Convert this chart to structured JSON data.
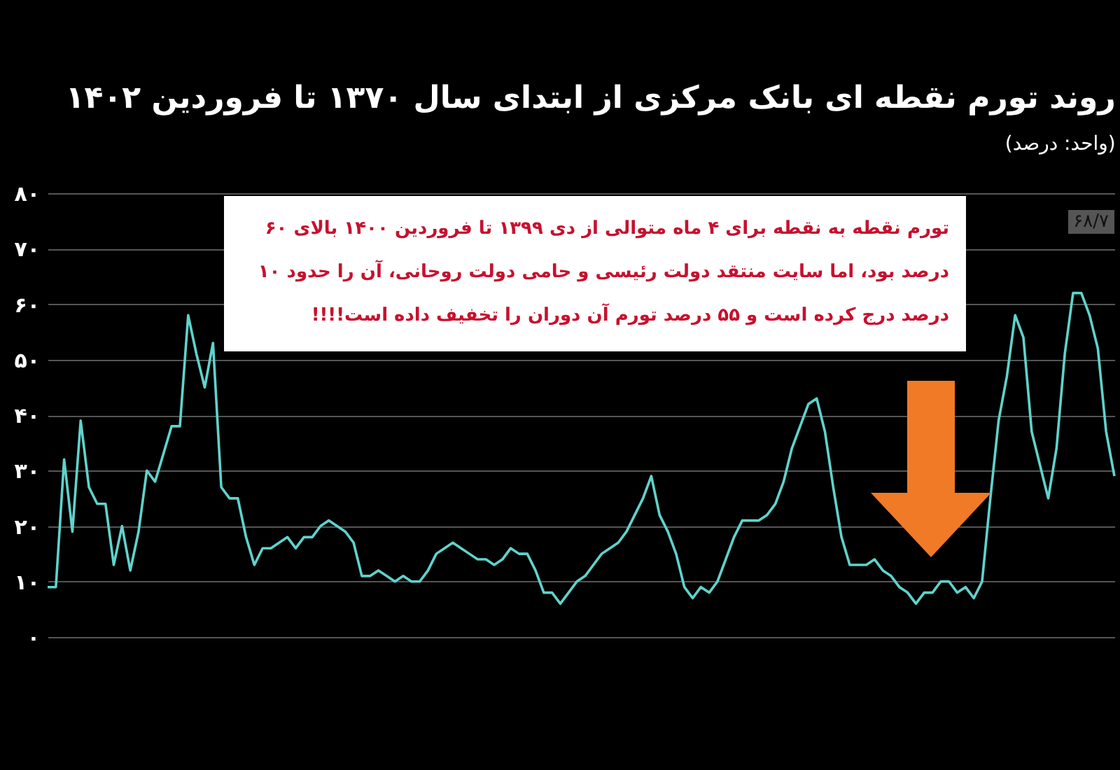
{
  "chart_data": {
    "type": "line",
    "title": "روند تورم نقطه ای بانک مرکزی از ابتدای سال ۱۳۷۰ تا فروردین ۱۴۰۲",
    "subtitle": "(واحد: درصد)",
    "annotations": [
      "تورم نقطه به نقطه برای ۴ ماه متوالی از دی ۱۳۹۹ تا فروردین ۱۴۰۰ بالای ۶۰ درصد بود، اما سایت منتقد دولت رئیسی و حامی دولت روحانی، آن را حدود ۱۰ درصد درج کرده است و ۵۵ درصد تورم آن دوران را تخفیف داده است!!!!",
      "۶۸/۷"
    ],
    "categories": [
      null,
      null,
      null,
      null,
      null,
      null,
      null,
      null,
      null,
      null,
      null,
      null,
      null,
      null,
      null,
      null,
      null,
      null,
      null,
      null,
      null,
      null,
      null,
      null,
      null,
      null,
      null,
      null,
      null,
      null,
      null,
      null,
      null,
      null,
      null,
      null,
      null,
      null,
      null,
      null,
      null,
      null,
      null,
      null,
      null,
      null,
      null,
      null,
      null,
      null,
      null,
      null,
      null,
      null,
      null,
      null,
      null,
      null,
      null,
      null,
      null,
      null,
      null,
      null,
      null,
      null,
      null,
      null,
      null,
      null,
      null,
      null,
      null,
      null,
      null,
      null,
      null,
      null,
      null,
      null,
      null,
      null,
      null,
      null,
      null,
      null,
      null,
      null,
      null,
      null,
      null,
      null,
      null,
      null,
      null,
      null,
      null,
      null,
      null,
      null,
      null,
      null,
      null,
      null,
      null,
      null,
      null,
      null,
      null,
      null,
      null,
      null,
      null,
      null,
      null,
      null,
      null,
      null,
      null,
      null,
      null,
      null,
      null,
      null,
      null,
      null,
      null,
      null,
      null,
      null
    ],
    "series": [
      {
        "color": "#5fd3cc",
        "values": [
          9,
          9,
          32,
          19,
          39,
          27,
          24,
          24,
          13,
          20,
          12,
          19,
          30,
          28,
          33,
          38,
          38,
          58,
          51,
          45,
          53,
          27,
          25,
          25,
          18,
          13,
          16,
          16,
          17,
          18,
          16,
          18,
          18,
          20,
          21,
          20,
          19,
          17,
          11,
          11,
          12,
          11,
          10,
          11,
          10,
          10,
          12,
          15,
          16,
          17,
          16,
          15,
          14,
          14,
          13,
          14,
          16,
          15,
          15,
          12,
          8,
          8,
          6,
          8,
          10,
          11,
          13,
          15,
          16,
          17,
          19,
          22,
          25,
          29,
          22,
          19,
          15,
          9,
          7,
          9,
          8,
          10,
          14,
          18,
          21,
          21,
          21,
          22,
          24,
          28,
          34,
          38,
          42,
          43,
          37,
          27,
          18,
          13,
          13,
          13,
          14,
          12,
          11,
          9,
          8,
          6,
          8,
          8,
          10,
          10,
          8,
          9,
          7,
          10,
          25,
          39,
          47,
          58,
          54,
          37,
          31,
          25,
          34,
          51,
          62,
          62,
          58,
          52,
          37,
          29
        ]
      }
    ],
    "ylim": [
      0,
      80
    ],
    "yticks": [
      {
        "value": 0,
        "label": "۰"
      },
      {
        "value": 10,
        "label": "۱۰"
      },
      {
        "value": 20,
        "label": "۲۰"
      },
      {
        "value": 30,
        "label": "۳۰"
      },
      {
        "value": 40,
        "label": "۴۰"
      },
      {
        "value": 50,
        "label": "۵۰"
      },
      {
        "value": 60,
        "label": "۶۰"
      },
      {
        "value": 70,
        "label": "۷۰"
      },
      {
        "value": 80,
        "label": "۸۰"
      }
    ],
    "grid": "y",
    "tick_labels": "y"
  }
}
